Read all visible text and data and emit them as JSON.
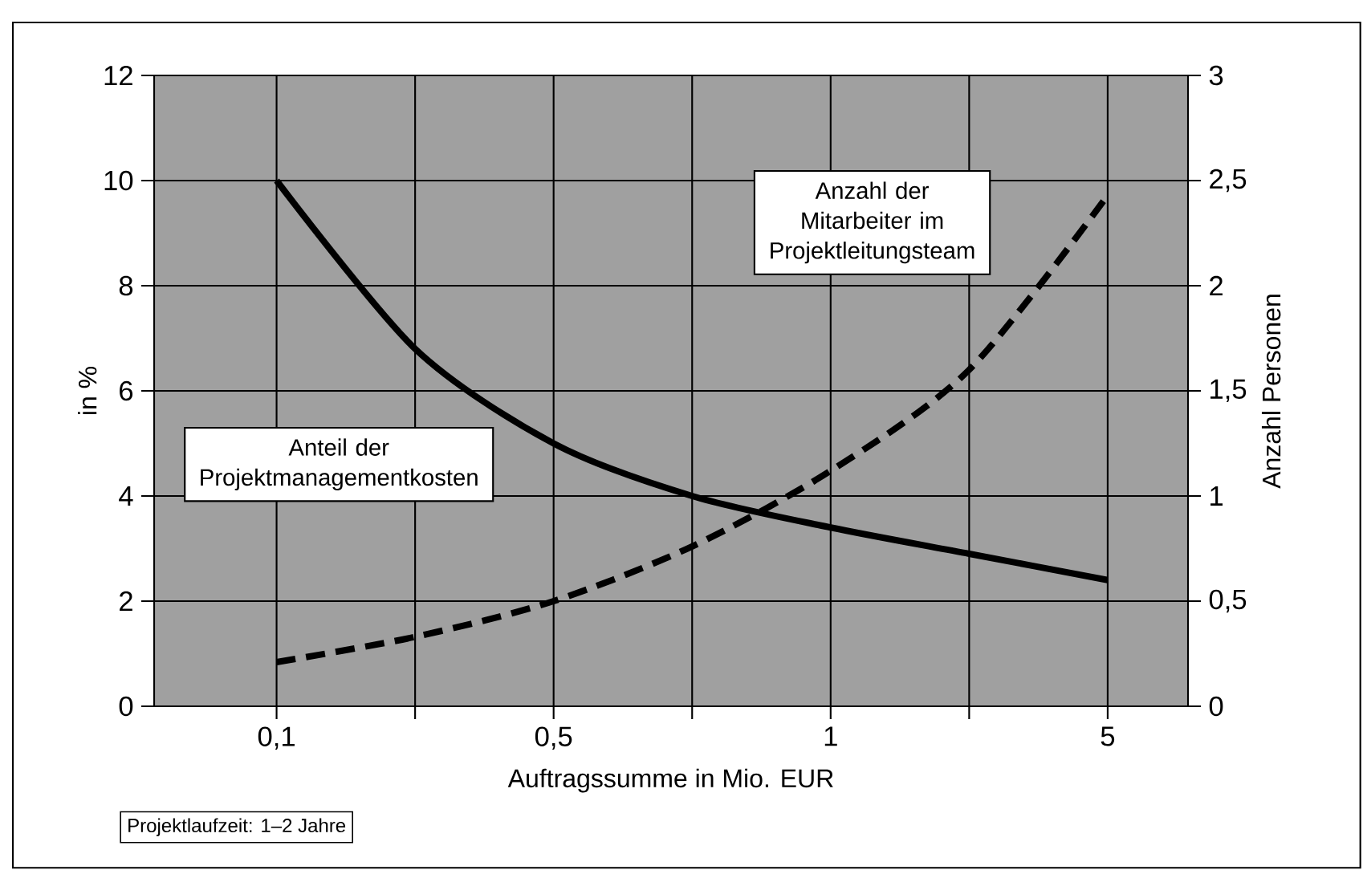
{
  "chart_data": {
    "type": "line",
    "categories": [
      "0,1",
      null,
      "0,5",
      null,
      "1",
      null,
      "5"
    ],
    "series": [
      {
        "name": "Anteil der Projektmanagementkosten",
        "color": "#000000",
        "line_style": "solid",
        "values": [
          10.0,
          6.8,
          5.0,
          4.0,
          3.4,
          2.9,
          2.4
        ]
      },
      {
        "name": "Anzahl der Mitarbeiter im Projektleitungsteam",
        "color": "#000000",
        "line_style": "dashed",
        "axis": "y2",
        "values": [
          0.21,
          0.33,
          0.5,
          0.76,
          1.12,
          1.6,
          2.43
        ]
      }
    ],
    "xlabel": "Auftragssumme in Mio. EUR",
    "ylabel": "in %",
    "y2label": "Anzahl Personen",
    "ylim": [
      0,
      12
    ],
    "yticks": [
      0,
      2,
      4,
      6,
      8,
      10,
      12
    ],
    "y2lim": [
      0,
      3
    ],
    "y2ticks": [
      0,
      {
        "value": 0.5,
        "label": "0,5"
      },
      1,
      {
        "value": 1.5,
        "label": "1,5"
      },
      2,
      {
        "value": 2.5,
        "label": "2,5"
      },
      3
    ],
    "grid": true,
    "legend": false,
    "marker": "none",
    "annotations": [
      "Projektlaufzeit: 1–2 Jahre"
    ]
  }
}
